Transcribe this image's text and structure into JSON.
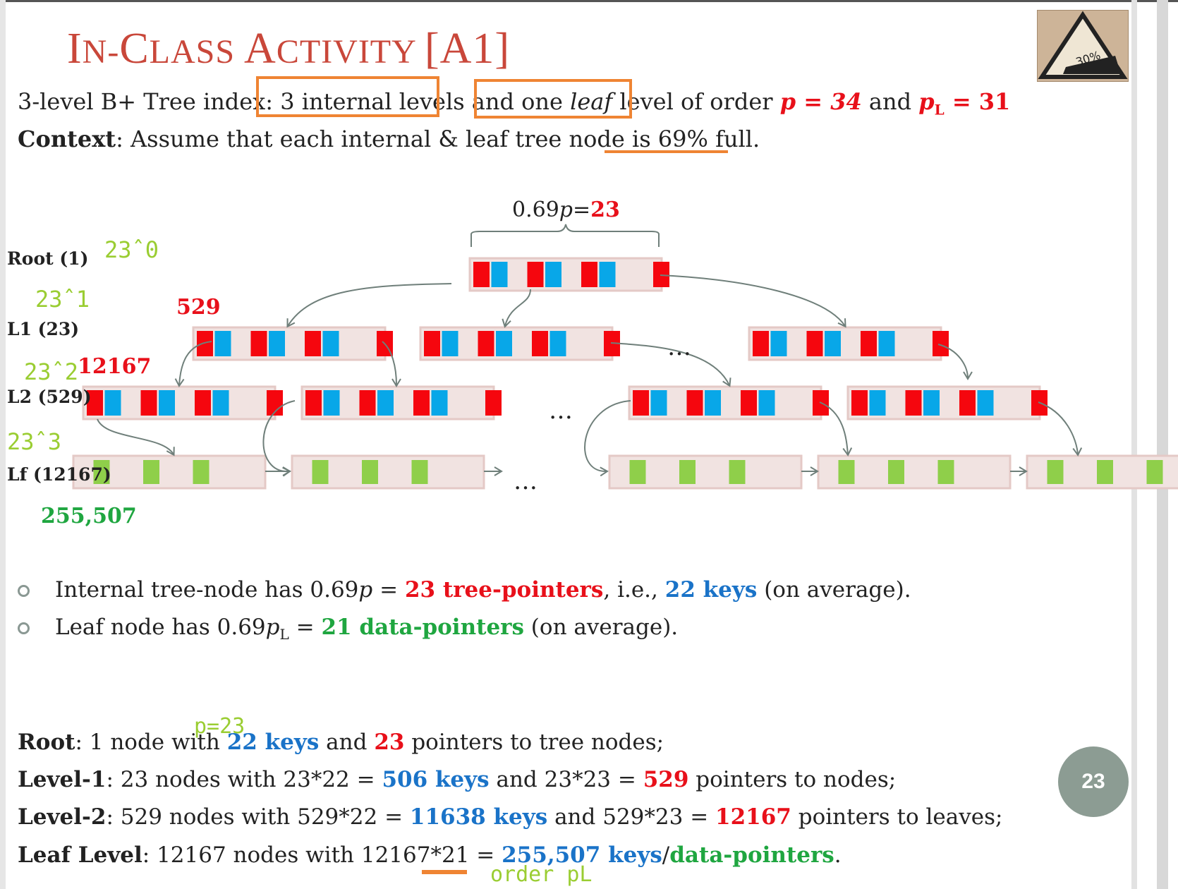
{
  "slide": {
    "title": "In-Class Activity [A1]",
    "title_parts": [
      "I",
      "N-",
      "C",
      "LASS ",
      "A",
      "CTIVITY ",
      "[A1]"
    ],
    "badge_text": "30%",
    "page_number": "23"
  },
  "line1": {
    "prefix": "3-level B+ Tree index: ",
    "box1": "3 internal levels",
    "mid": " and ",
    "box2_a": "one ",
    "box2_b": "leaf",
    "box2_c": " level",
    "suffix": " of order ",
    "p_eq": "p = 34",
    "and": " and ",
    "pl": "p",
    "pl_sub": "L",
    "pl_eq": " = 31"
  },
  "line2": {
    "bold": "Context",
    "text": ": Assume that each internal & leaf tree node is 69% full."
  },
  "diagram": {
    "brace_label_a": "0.69",
    "brace_label_p": "p",
    "brace_label_eq": "=",
    "brace_label_val": "23",
    "levels": [
      {
        "label": "Root (1)"
      },
      {
        "label": "L1 (23)"
      },
      {
        "label": "L2 (529)"
      },
      {
        "label": "Lf (12167)"
      }
    ],
    "annotations": {
      "pow0": "23ˆ0",
      "pow1": "23ˆ1",
      "pow2": "23ˆ2",
      "pow3": "23ˆ3",
      "count_l1": "529",
      "count_l2": "12167",
      "count_leaf": "255,507"
    },
    "ellipsis": "…",
    "colors": {
      "red": "#f5060e",
      "blue": "#08a7e8",
      "green": "#8fcf4a",
      "node_bg": "#f1e3e1",
      "node_border": "#e4c9c6",
      "arrow": "#6f7f7a"
    }
  },
  "bullets": [
    {
      "a": "Internal tree-node has 0.69",
      "p": "p",
      "b": " = ",
      "red": "23 tree-pointers",
      "c": ", i.e., ",
      "blue": "22 keys",
      "d": " (on average)."
    },
    {
      "a": "Leaf node has 0.69",
      "p": "p",
      "sub": "L",
      "b": " =  ",
      "green": "21 data-pointers",
      "d": " (on average)."
    }
  ],
  "bottom": {
    "root": {
      "bold": "Root",
      "a": ": 1 node with ",
      "blue": "22 keys",
      "b": " and ",
      "red": "23",
      "c": " pointers to tree nodes;"
    },
    "l1": {
      "bold": "Level-1",
      "a": ": 23 nodes with 23*22 = ",
      "blue": "506 keys",
      "b": " and 23*23 = ",
      "red": "529",
      "c": " pointers to nodes;"
    },
    "l2": {
      "bold": "Level-2",
      "a": ": 529 nodes with 529*22 = ",
      "blue": "11638 keys",
      "b": " and 529*23 = ",
      "red": "12167",
      "c": " pointers to leaves;"
    },
    "leaf": {
      "bold": "Leaf Level",
      "a": ": 12167 nodes with 12167*21 = ",
      "blue": "255,507 keys",
      "slash": "/",
      "green": "data-pointers",
      "c": "."
    },
    "note_p": "p=23",
    "note_order": "order pL"
  }
}
